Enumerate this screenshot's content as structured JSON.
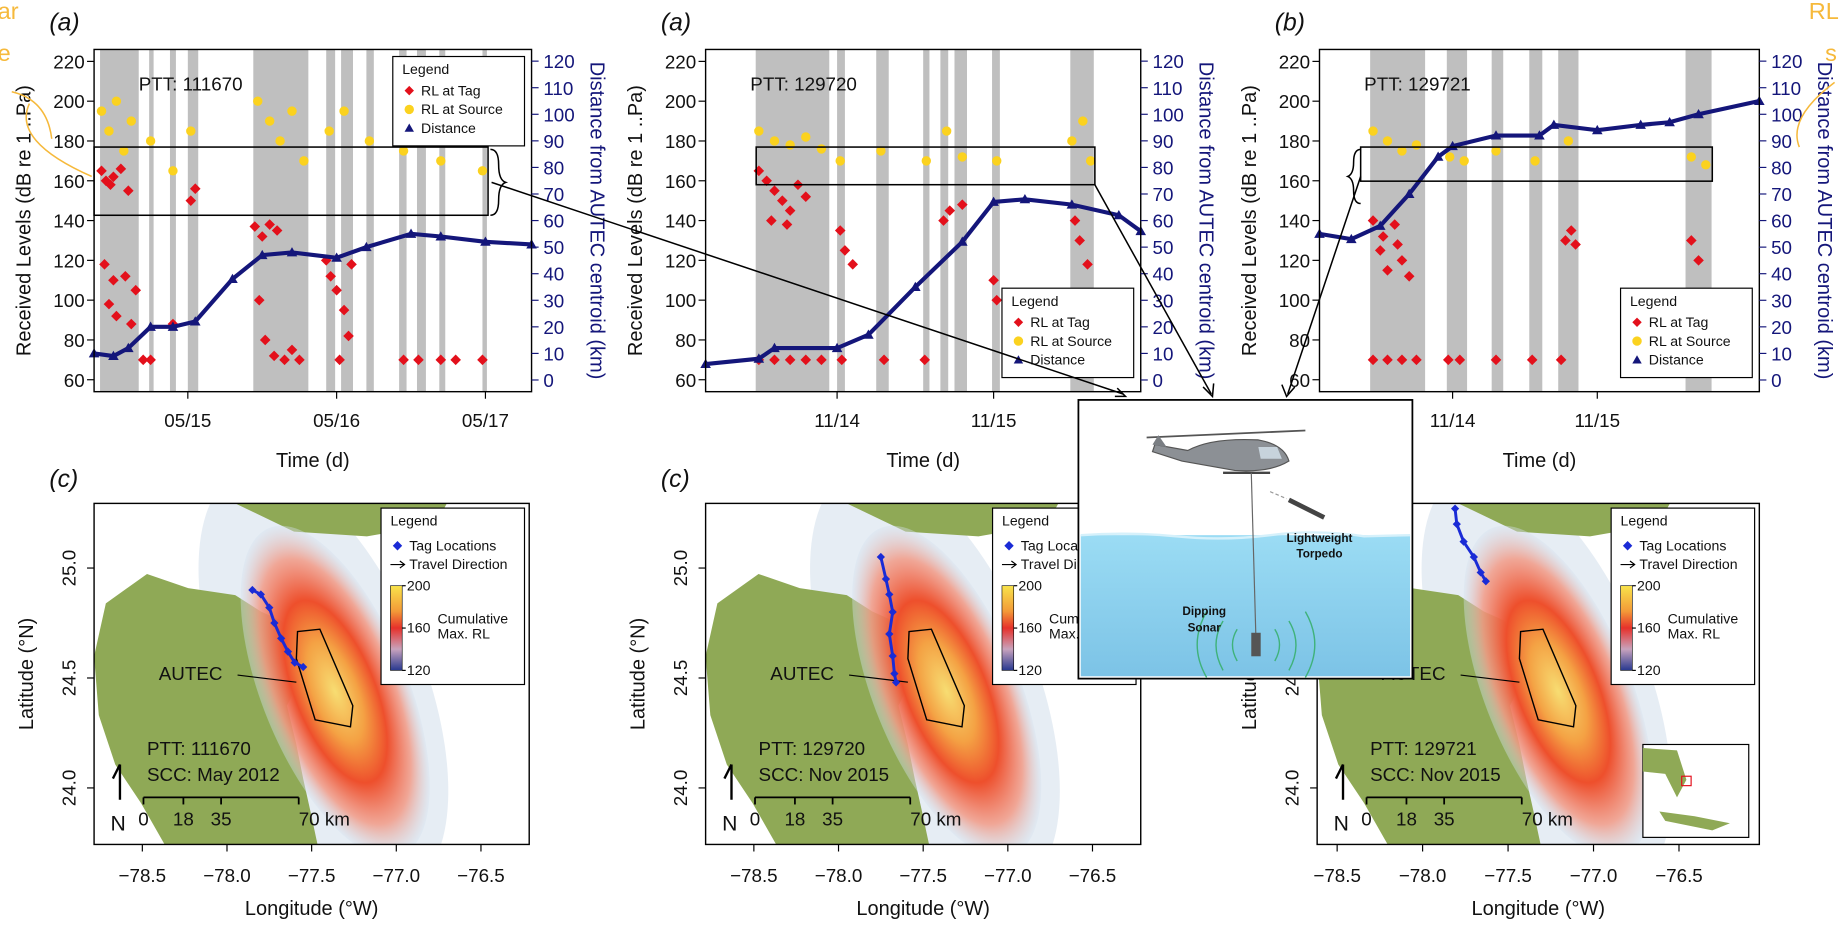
{
  "chart_data": [
    {
      "type": "scatter",
      "panel": "(a)",
      "annotation": "PTT: 111670",
      "xlabel": "Time (d)",
      "ylabel": "Received Levels (dB re 1 ..Pa)",
      "y2label": "Distance from AUTEC centroid (km)",
      "xlim": [
        14.37,
        17.31
      ],
      "xticks": [
        {
          "value": 15,
          "label": "05/15"
        },
        {
          "value": 16,
          "label": "05/16"
        },
        {
          "value": 17,
          "label": "05/17"
        }
      ],
      "ylim": [
        54,
        226
      ],
      "yticks": [
        60,
        80,
        100,
        120,
        140,
        160,
        180,
        200,
        220
      ],
      "y2lim": [
        -4.4,
        124.4
      ],
      "y2ticks": [
        0,
        10,
        20,
        30,
        40,
        50,
        60,
        70,
        80,
        90,
        100,
        110,
        120
      ],
      "shading_color": "#bfbfbf",
      "shading": [
        [
          14.41,
          14.67
        ],
        [
          14.74,
          14.77
        ],
        [
          14.88,
          14.92
        ],
        [
          15.0,
          15.07
        ],
        [
          15.44,
          15.81
        ],
        [
          15.93,
          15.99
        ],
        [
          16.03,
          16.11
        ],
        [
          16.2,
          16.25
        ],
        [
          16.42,
          16.47
        ],
        [
          16.54,
          16.6
        ],
        [
          16.69,
          16.73
        ],
        [
          16.98,
          17.01
        ]
      ],
      "legend_title": "Legend",
      "legend_position": "top-right",
      "series": [
        {
          "name": "RL at Tag",
          "color": "#e3101b",
          "marker": "diamond",
          "x": [
            14.42,
            14.45,
            14.48,
            14.5,
            14.55,
            14.6,
            14.44,
            14.5,
            14.58,
            14.47,
            14.52,
            14.62,
            14.65,
            14.7,
            14.75,
            14.9,
            15.02,
            15.05,
            15.45,
            15.5,
            15.55,
            15.6,
            15.48,
            15.52,
            15.58,
            15.65,
            15.7,
            15.75,
            15.93,
            15.96,
            16.0,
            16.05,
            16.08,
            16.02,
            16.1,
            16.45,
            16.55,
            16.7,
            16.8,
            16.98
          ],
          "values": [
            165,
            160,
            158,
            162,
            166,
            155,
            118,
            110,
            112,
            98,
            92,
            88,
            105,
            70,
            70,
            88,
            150,
            156,
            137,
            132,
            138,
            135,
            100,
            80,
            72,
            70,
            75,
            70,
            120,
            112,
            105,
            95,
            82,
            70,
            118,
            70,
            70,
            70,
            70,
            70
          ]
        },
        {
          "name": "RL at Source",
          "color": "#fbd21f",
          "marker": "circle",
          "x": [
            14.42,
            14.47,
            14.52,
            14.57,
            14.62,
            14.75,
            14.9,
            15.02,
            15.47,
            15.55,
            15.62,
            15.7,
            15.78,
            15.95,
            16.05,
            16.22,
            16.45,
            16.57,
            16.7,
            16.98
          ],
          "values": [
            195,
            185,
            200,
            175,
            190,
            180,
            165,
            185,
            200,
            190,
            180,
            195,
            170,
            185,
            195,
            180,
            175,
            185,
            170,
            165
          ]
        },
        {
          "name": "Distance",
          "color": "#14167a",
          "marker": "triangle",
          "axis": "y2",
          "x": [
            14.37,
            14.5,
            14.6,
            14.75,
            14.9,
            15.05,
            15.3,
            15.5,
            15.7,
            16.0,
            16.2,
            16.5,
            16.7,
            17.0,
            17.31
          ],
          "values": [
            10,
            9,
            12,
            20,
            20,
            22,
            38,
            47,
            48,
            46,
            50,
            55,
            54,
            52,
            51
          ]
        }
      ]
    },
    {
      "type": "scatter",
      "panel": "(a)",
      "annotation": "PTT: 129720",
      "xlabel": "Time (d)",
      "ylabel": "Received Levels (dB re 1 ..Pa)",
      "y2label": "Distance from AUTEC centroid (km)",
      "xlim": [
        13.16,
        15.94
      ],
      "xticks": [
        {
          "value": 14,
          "label": "11/14"
        },
        {
          "value": 15,
          "label": "11/15"
        }
      ],
      "ylim": [
        54,
        226
      ],
      "yticks": [
        60,
        80,
        100,
        120,
        140,
        160,
        180,
        200,
        220
      ],
      "y2lim": [
        -4.4,
        124.4
      ],
      "y2ticks": [
        0,
        10,
        20,
        30,
        40,
        50,
        60,
        70,
        80,
        90,
        100,
        110,
        120
      ],
      "shading_color": "#bfbfbf",
      "shading": [
        [
          13.48,
          13.95
        ],
        [
          14.0,
          14.05
        ],
        [
          14.25,
          14.33
        ],
        [
          14.55,
          14.59
        ],
        [
          14.66,
          14.71
        ],
        [
          14.75,
          14.83
        ],
        [
          14.99,
          15.04
        ],
        [
          15.49,
          15.64
        ]
      ],
      "legend_title": "Legend",
      "legend_position": "bottom-right",
      "series": [
        {
          "name": "RL at Tag",
          "color": "#e3101b",
          "marker": "diamond",
          "x": [
            13.5,
            13.55,
            13.6,
            13.65,
            13.7,
            13.75,
            13.8,
            13.58,
            13.68,
            13.5,
            13.6,
            13.7,
            13.8,
            13.9,
            14.02,
            14.05,
            14.1,
            14.03,
            14.3,
            14.56,
            14.68,
            14.72,
            14.8,
            15.0,
            15.02,
            15.52,
            15.55,
            15.6,
            15.58
          ],
          "values": [
            165,
            160,
            155,
            150,
            145,
            158,
            152,
            140,
            138,
            70,
            70,
            70,
            70,
            70,
            135,
            125,
            118,
            70,
            70,
            70,
            140,
            145,
            148,
            110,
            100,
            140,
            130,
            118,
            70
          ]
        },
        {
          "name": "RL at Source",
          "color": "#fbd21f",
          "marker": "circle",
          "x": [
            13.5,
            13.6,
            13.7,
            13.8,
            13.9,
            14.02,
            14.28,
            14.57,
            14.7,
            14.8,
            15.02,
            15.5,
            15.57,
            15.62
          ],
          "values": [
            185,
            180,
            178,
            182,
            176,
            170,
            175,
            170,
            185,
            172,
            170,
            180,
            190,
            170
          ]
        },
        {
          "name": "Distance",
          "color": "#14167a",
          "marker": "triangle",
          "axis": "y2",
          "x": [
            13.16,
            13.5,
            13.6,
            14.0,
            14.2,
            14.5,
            14.8,
            15.0,
            15.2,
            15.5,
            15.8,
            15.94
          ],
          "values": [
            6,
            8,
            12,
            12,
            17,
            35,
            52,
            67,
            68,
            66,
            62,
            56
          ]
        }
      ]
    },
    {
      "type": "scatter",
      "panel": "(b)",
      "annotation": "PTT: 129721",
      "xlabel": "Time (d)",
      "ylabel": "Received Levels (dB re 1 ..Pa)",
      "y2label": "Distance from AUTEC centroid (km)",
      "xlim": [
        13.08,
        16.12
      ],
      "xticks": [
        {
          "value": 14,
          "label": "11/14"
        },
        {
          "value": 15,
          "label": "11/15"
        }
      ],
      "ylim": [
        54,
        226
      ],
      "yticks": [
        60,
        80,
        100,
        120,
        140,
        160,
        180,
        200,
        220
      ],
      "y2lim": [
        -4.4,
        124.4
      ],
      "y2ticks": [
        0,
        10,
        20,
        30,
        40,
        50,
        60,
        70,
        80,
        90,
        100,
        110,
        120
      ],
      "shading_color": "#bfbfbf",
      "shading": [
        [
          13.43,
          13.81
        ],
        [
          13.96,
          14.1
        ],
        [
          14.27,
          14.35
        ],
        [
          14.53,
          14.62
        ],
        [
          14.73,
          14.87
        ],
        [
          15.61,
          15.79
        ]
      ],
      "legend_title": "Legend",
      "legend_position": "bottom-right",
      "series": [
        {
          "name": "RL at Tag",
          "color": "#e3101b",
          "marker": "diamond",
          "x": [
            13.45,
            13.5,
            13.55,
            13.6,
            13.65,
            13.7,
            13.52,
            13.62,
            13.45,
            13.55,
            13.65,
            13.75,
            13.97,
            14.05,
            14.3,
            14.55,
            14.78,
            14.82,
            14.85,
            14.75,
            15.65,
            15.7,
            15.72
          ],
          "values": [
            140,
            125,
            115,
            138,
            120,
            112,
            132,
            128,
            70,
            70,
            70,
            70,
            70,
            70,
            70,
            70,
            130,
            135,
            128,
            70,
            130,
            120,
            70
          ]
        },
        {
          "name": "RL at Source",
          "color": "#fbd21f",
          "marker": "circle",
          "x": [
            13.45,
            13.55,
            13.65,
            13.75,
            13.98,
            14.08,
            14.3,
            14.57,
            14.8,
            15.65,
            15.75
          ],
          "values": [
            185,
            180,
            175,
            178,
            172,
            170,
            175,
            170,
            180,
            172,
            168
          ]
        },
        {
          "name": "Distance",
          "color": "#14167a",
          "marker": "triangle",
          "axis": "y2",
          "x": [
            13.08,
            13.3,
            13.5,
            13.7,
            13.9,
            14.0,
            14.3,
            14.6,
            14.7,
            15.0,
            15.3,
            15.5,
            15.7,
            16.12
          ],
          "values": [
            55,
            53,
            58,
            70,
            84,
            88,
            92,
            92,
            96,
            94,
            96,
            97,
            100,
            105
          ]
        }
      ]
    },
    {
      "type": "map",
      "panel": "(c)",
      "xlabel": "Longitude (°W)",
      "ylabel": "Latitude (°N)",
      "xlim": [
        -78.785,
        -76.215
      ],
      "xticks": [
        {
          "value": -78.5,
          "label": "−78.5"
        },
        {
          "value": -78.0,
          "label": "−78.0"
        },
        {
          "value": -77.5,
          "label": "−77.5"
        },
        {
          "value": -77.0,
          "label": "−77.0"
        },
        {
          "value": -76.5,
          "label": "−76.5"
        }
      ],
      "ylim": [
        23.743,
        25.294
      ],
      "yticks": [
        {
          "value": 24,
          "label": "24.0"
        },
        24.5,
        {
          "value": 25,
          "label": "25.0"
        }
      ],
      "annotations": [
        "PTT: 111670",
        "SCC: May 2012"
      ],
      "region_label": "AUTEC",
      "legend_title": "Legend",
      "arrow_legend": "Travel Direction",
      "series": [
        {
          "name": "Tag Locations",
          "color": "#1a2bd6",
          "x": [
            -77.85,
            -77.8,
            -77.75,
            -77.72,
            -77.68,
            -77.64,
            -77.6,
            -77.55
          ],
          "values": [
            24.9,
            24.88,
            24.82,
            24.75,
            24.68,
            24.62,
            24.57,
            24.55
          ]
        }
      ],
      "colorbar": {
        "lim": [
          120,
          200
        ],
        "ticks": [
          120,
          160,
          200
        ],
        "label_lines": [
          "Cumulative",
          "Max. RL"
        ]
      },
      "scalebar": {
        "ticks": [
          0,
          18,
          35,
          {
            "value": 70,
            "label": "70 km"
          }
        ],
        "north_label": "N"
      },
      "locator_inset": false
    },
    {
      "type": "map",
      "panel": "(c)",
      "xlabel": "Longitude (°W)",
      "ylabel": "Latitude (°N)",
      "xlim": [
        -78.785,
        -76.215
      ],
      "xticks": [
        {
          "value": -78.5,
          "label": "−78.5"
        },
        {
          "value": -78.0,
          "label": "−78.0"
        },
        {
          "value": -77.5,
          "label": "−77.5"
        },
        {
          "value": -77.0,
          "label": "−77.0"
        },
        {
          "value": -76.5,
          "label": "−76.5"
        }
      ],
      "ylim": [
        23.743,
        25.294
      ],
      "yticks": [
        {
          "value": 24,
          "label": "24.0"
        },
        24.5,
        {
          "value": 25,
          "label": "25.0"
        }
      ],
      "annotations": [
        "PTT: 129720",
        "SCC: Nov 2015"
      ],
      "region_label": "AUTEC",
      "legend_title": "Legend",
      "arrow_legend": "Travel Direction",
      "series": [
        {
          "name": "Tag Locations",
          "color": "#1a2bd6",
          "x": [
            -77.75,
            -77.72,
            -77.7,
            -77.68,
            -77.7,
            -77.68,
            -77.67,
            -77.66
          ],
          "values": [
            25.05,
            24.95,
            24.88,
            24.8,
            24.7,
            24.6,
            24.52,
            24.48
          ]
        }
      ],
      "colorbar": {
        "lim": [
          120,
          200
        ],
        "ticks": [
          120,
          160,
          200
        ],
        "label_lines": [
          "Cumulative",
          "Max. RL"
        ]
      },
      "scalebar": {
        "ticks": [
          0,
          18,
          35,
          {
            "value": 70,
            "label": "70 km"
          }
        ],
        "north_label": "N"
      },
      "locator_inset": false
    },
    {
      "type": "map",
      "xlabel": "Longitude (°W)",
      "ylabel": "Latitude (°N)",
      "xlim": [
        -78.617,
        -76.03
      ],
      "xticks": [
        {
          "value": -78.5,
          "label": "−78.5"
        },
        {
          "value": -78.0,
          "label": "−78.0"
        },
        {
          "value": -77.5,
          "label": "−77.5"
        },
        {
          "value": -77.0,
          "label": "−77.0"
        },
        {
          "value": -76.5,
          "label": "−76.5"
        }
      ],
      "ylim": [
        23.743,
        25.294
      ],
      "yticks": [
        {
          "value": 24,
          "label": "24.0"
        },
        24.5,
        {
          "value": 25,
          "label": "25.0"
        }
      ],
      "annotations": [
        "PTT: 129721",
        "SCC: Nov 2015"
      ],
      "region_label": "AUTEC",
      "legend_title": "Legend",
      "arrow_legend": "Travel Direction",
      "series": [
        {
          "name": "Tag Locations",
          "color": "#1a2bd6",
          "x": [
            -77.81,
            -77.8,
            -77.76,
            -77.7,
            -77.66,
            -77.63
          ],
          "values": [
            25.27,
            25.2,
            25.12,
            25.05,
            24.98,
            24.94
          ]
        }
      ],
      "colorbar": {
        "lim": [
          120,
          200
        ],
        "ticks": [
          120,
          160,
          200
        ],
        "label_lines": [
          "Cumulative",
          "Max. RL"
        ]
      },
      "scalebar": {
        "ticks": [
          0,
          18,
          35,
          {
            "value": 70,
            "label": "70 km"
          }
        ],
        "north_label": "N"
      },
      "locator_inset": true
    }
  ],
  "inset": {
    "torpedo_label": [
      "Lightweight",
      "Torpedo"
    ],
    "sonar_label": [
      "Dipping",
      "Sonar"
    ]
  },
  "edge_fragments": {
    "left": [
      "ar",
      "e"
    ],
    "right": [
      "RL",
      "s"
    ]
  }
}
